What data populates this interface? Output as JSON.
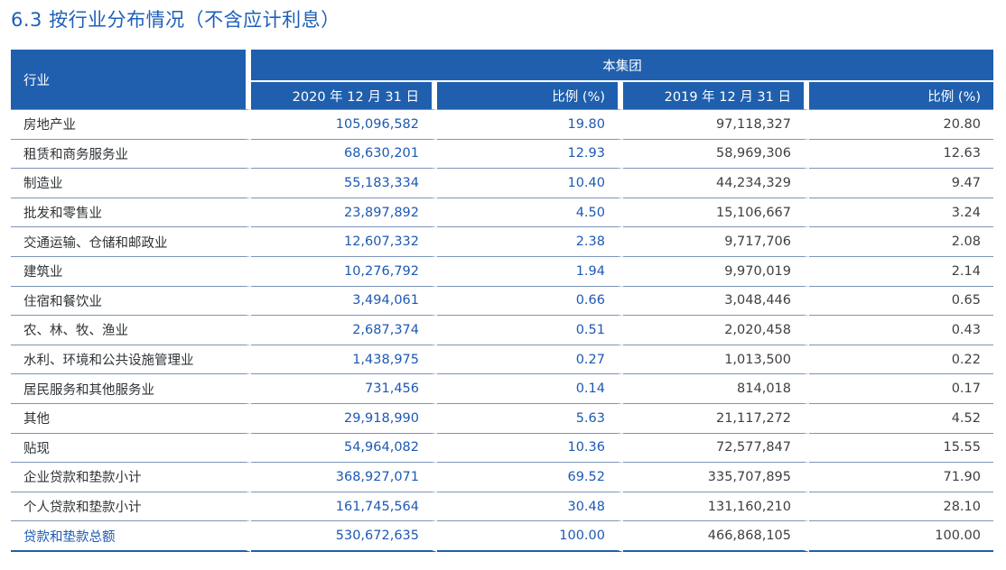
{
  "title": "6.3 按行业分布情况（不含应计利息）",
  "table": {
    "industry_header": "行业",
    "group_header": "本集团",
    "sub_headers": [
      "2020 年 12 月 31 日",
      "比例 (%)",
      "2019 年 12 月 31 日",
      "比例 (%)"
    ],
    "rows": [
      {
        "name": "房地产业",
        "v2020": "105,096,582",
        "p2020": "19.80",
        "v2019": "97,118,327",
        "p2019": "20.80"
      },
      {
        "name": "租赁和商务服务业",
        "v2020": "68,630,201",
        "p2020": "12.93",
        "v2019": "58,969,306",
        "p2019": "12.63"
      },
      {
        "name": "制造业",
        "v2020": "55,183,334",
        "p2020": "10.40",
        "v2019": "44,234,329",
        "p2019": "9.47"
      },
      {
        "name": "批发和零售业",
        "v2020": "23,897,892",
        "p2020": "4.50",
        "v2019": "15,106,667",
        "p2019": "3.24"
      },
      {
        "name": "交通运输、仓储和邮政业",
        "v2020": "12,607,332",
        "p2020": "2.38",
        "v2019": "9,717,706",
        "p2019": "2.08"
      },
      {
        "name": "建筑业",
        "v2020": "10,276,792",
        "p2020": "1.94",
        "v2019": "9,970,019",
        "p2019": "2.14"
      },
      {
        "name": "住宿和餐饮业",
        "v2020": "3,494,061",
        "p2020": "0.66",
        "v2019": "3,048,446",
        "p2019": "0.65"
      },
      {
        "name": "农、林、牧、渔业",
        "v2020": "2,687,374",
        "p2020": "0.51",
        "v2019": "2,020,458",
        "p2019": "0.43"
      },
      {
        "name": "水利、环境和公共设施管理业",
        "v2020": "1,438,975",
        "p2020": "0.27",
        "v2019": "1,013,500",
        "p2019": "0.22"
      },
      {
        "name": "居民服务和其他服务业",
        "v2020": "731,456",
        "p2020": "0.14",
        "v2019": "814,018",
        "p2019": "0.17"
      },
      {
        "name": "其他",
        "v2020": "29,918,990",
        "p2020": "5.63",
        "v2019": "21,117,272",
        "p2019": "4.52"
      },
      {
        "name": "贴现",
        "v2020": "54,964,082",
        "p2020": "10.36",
        "v2019": "72,577,847",
        "p2019": "15.55"
      },
      {
        "name": "企业贷款和垫款小计",
        "v2020": "368,927,071",
        "p2020": "69.52",
        "v2019": "335,707,895",
        "p2019": "71.90"
      },
      {
        "name": "个人贷款和垫款小计",
        "v2020": "161,745,564",
        "p2020": "30.48",
        "v2019": "131,160,210",
        "p2019": "28.10"
      },
      {
        "name": "贷款和垫款总额",
        "v2020": "530,672,635",
        "p2020": "100.00",
        "v2019": "466,868,105",
        "p2019": "100.00"
      }
    ]
  },
  "colors": {
    "header_bg": "#1f5fae",
    "title": "#1e5fb8",
    "value_blue": "#1d59b3",
    "value_gray": "#3d4043"
  }
}
